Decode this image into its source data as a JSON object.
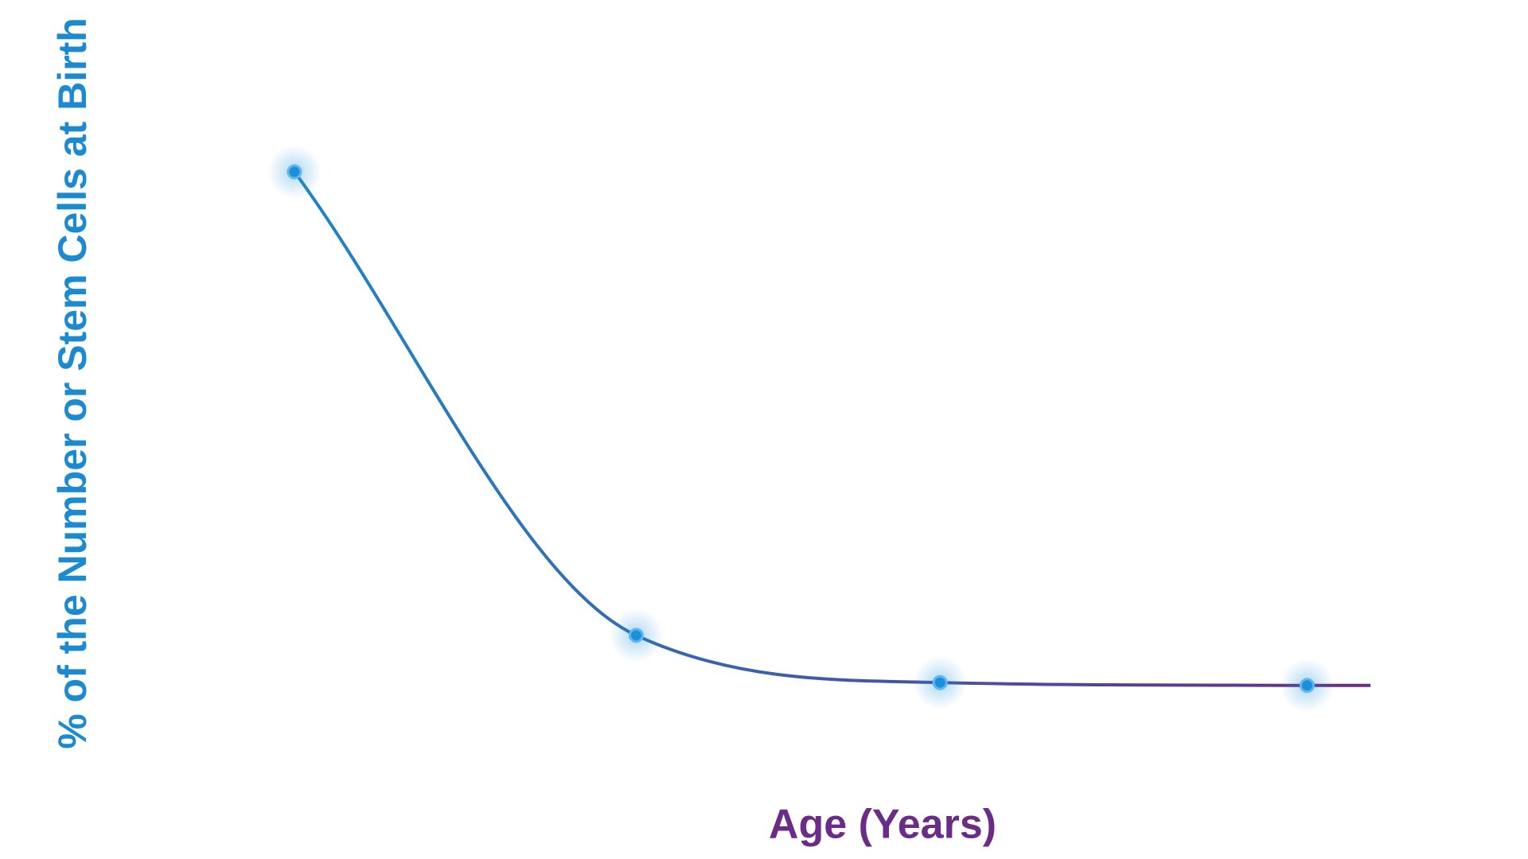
{
  "chart_data": {
    "type": "line",
    "x_label": "Age (Years)",
    "y_label": "% of the Number or Stem Cells at Birth",
    "x": [
      0,
      27,
      51,
      80
    ],
    "series": [
      {
        "values": [
          100,
          19.5,
          11.3,
          10.8
        ],
        "color": "#1a86cc",
        "end_color": "#6a2c86",
        "point_color": "#1b8fd8"
      }
    ],
    "xlim": [
      0,
      85
    ],
    "ylim": [
      0,
      100
    ],
    "x_label_color": "#6a2c86",
    "y_label_color": "#1b8ad0",
    "grid": false
  }
}
